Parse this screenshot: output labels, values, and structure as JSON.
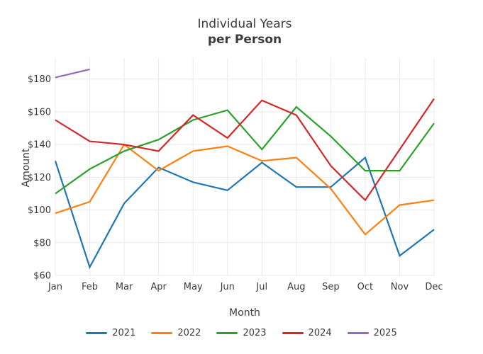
{
  "title": "Individual Years",
  "subtitle": "per Person",
  "chart_data": {
    "type": "line",
    "title": "Individual Years",
    "subtitle": "per Person",
    "xlabel": "Month",
    "ylabel": "Amount",
    "categories": [
      "Jan",
      "Feb",
      "Mar",
      "Apr",
      "May",
      "Jun",
      "Jul",
      "Aug",
      "Sep",
      "Oct",
      "Nov",
      "Dec"
    ],
    "series": [
      {
        "name": "2021",
        "color": "#1f77b4",
        "values": [
          130,
          65,
          104,
          126,
          117,
          112,
          129,
          114,
          114,
          132,
          72,
          88
        ]
      },
      {
        "name": "2022",
        "color": "#ff7f0e",
        "values": [
          98,
          105,
          140,
          124,
          136,
          139,
          130,
          132,
          113,
          85,
          103,
          106
        ]
      },
      {
        "name": "2023",
        "color": "#2ca02c",
        "values": [
          110,
          125,
          136,
          143,
          155,
          161,
          137,
          163,
          145,
          124,
          124,
          153
        ]
      },
      {
        "name": "2024",
        "color": "#d62728",
        "values": [
          155,
          142,
          140,
          136,
          158,
          144,
          167,
          158,
          127,
          106,
          137,
          168
        ]
      },
      {
        "name": "2025",
        "color": "#9467bd",
        "values": [
          181,
          186,
          null,
          null,
          null,
          null,
          null,
          null,
          null,
          null,
          null,
          null
        ]
      }
    ],
    "ylim": [
      60,
      192
    ],
    "yticks": [
      60,
      80,
      100,
      120,
      140,
      160,
      180
    ],
    "ytick_prefix": "$",
    "grid": true,
    "grid_color": "#e9e9e9",
    "legend_position": "bottom",
    "text_color": "#3b3b3b"
  }
}
